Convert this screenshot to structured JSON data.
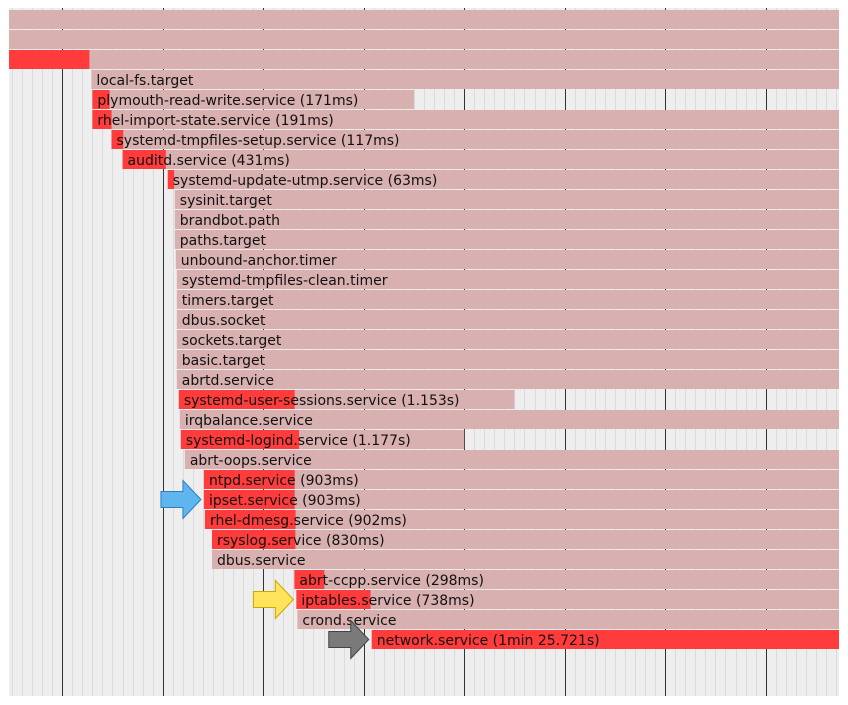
{
  "chart_data": {
    "type": "gantt",
    "x_unit": "seconds",
    "xlim": [
      -0.53,
      7.73
    ],
    "major_tick_step": 1,
    "minor_tick_step": 0.1,
    "colors": {
      "active": "#ff3b3b",
      "inactive": "#d8b0b0",
      "grid_bg": "#eeeeee",
      "minor_grid": "#cfcfcf",
      "major_grid": "#333333"
    },
    "rows": [
      {
        "label": "",
        "start": -0.53,
        "activating": null
      },
      {
        "label": "",
        "start": -0.53,
        "activating": null
      },
      {
        "label": "",
        "start": -0.53,
        "activating": 0.8
      },
      {
        "label": "local-fs.target",
        "start": 0.29,
        "activating": null
      },
      {
        "label": "plymouth-read-write.service (171ms)",
        "start": 0.3,
        "activating": 0.171,
        "end": 3.5
      },
      {
        "label": "rhel-import-state.service (191ms)",
        "start": 0.3,
        "activating": 0.191
      },
      {
        "label": "systemd-tmpfiles-setup.service (117ms)",
        "start": 0.49,
        "activating": 0.117
      },
      {
        "label": "auditd.service (431ms)",
        "start": 0.6,
        "activating": 0.431
      },
      {
        "label": "systemd-update-utmp.service (63ms)",
        "start": 1.05,
        "activating": 0.063
      },
      {
        "label": "sysinit.target",
        "start": 1.12,
        "activating": null
      },
      {
        "label": "brandbot.path",
        "start": 1.12,
        "activating": null
      },
      {
        "label": "paths.target",
        "start": 1.12,
        "activating": null
      },
      {
        "label": "unbound-anchor.timer",
        "start": 1.13,
        "activating": null
      },
      {
        "label": "systemd-tmpfiles-clean.timer",
        "start": 1.14,
        "activating": null
      },
      {
        "label": "timers.target",
        "start": 1.14,
        "activating": null
      },
      {
        "label": "dbus.socket",
        "start": 1.14,
        "activating": null
      },
      {
        "label": "sockets.target",
        "start": 1.14,
        "activating": null
      },
      {
        "label": "basic.target",
        "start": 1.14,
        "activating": null
      },
      {
        "label": "abrtd.service",
        "start": 1.14,
        "activating": null
      },
      {
        "label": "systemd-user-sessions.service (1.153s)",
        "start": 1.16,
        "activating": 1.153,
        "end": 4.5
      },
      {
        "label": "irqbalance.service",
        "start": 1.17,
        "activating": null
      },
      {
        "label": "systemd-logind.service (1.177s)",
        "start": 1.18,
        "activating": 1.177,
        "end": 4.0
      },
      {
        "label": "abrt-oops.service",
        "start": 1.22,
        "activating": null
      },
      {
        "label": "ntpd.service (903ms)",
        "start": 1.41,
        "activating": 0.903
      },
      {
        "label": "ipset.service (903ms)",
        "start": 1.41,
        "activating": 0.903
      },
      {
        "label": "rhel-dmesg.service (902ms)",
        "start": 1.42,
        "activating": 0.902
      },
      {
        "label": "rsyslog.service (830ms)",
        "start": 1.49,
        "activating": 0.83
      },
      {
        "label": "dbus.service",
        "start": 1.49,
        "activating": null
      },
      {
        "label": "abrt-ccpp.service (298ms)",
        "start": 2.31,
        "activating": 0.298
      },
      {
        "label": "iptables.service (738ms)",
        "start": 2.33,
        "activating": 0.738
      },
      {
        "label": "crond.service",
        "start": 2.34,
        "activating": null
      },
      {
        "label": "network.service (1min 25.721s)",
        "start": 3.08,
        "activating": 4.65
      }
    ],
    "arrows": [
      {
        "name": "blue-arrow",
        "row": 24,
        "color": "#5fb6ee",
        "border": "#2a7fc0"
      },
      {
        "name": "yellow-arrow",
        "row": 29,
        "color": "#ffe35a",
        "border": "#c9a800"
      },
      {
        "name": "gray-arrow",
        "row": 31,
        "color": "#7a7a7a",
        "border": "#444444"
      }
    ]
  }
}
